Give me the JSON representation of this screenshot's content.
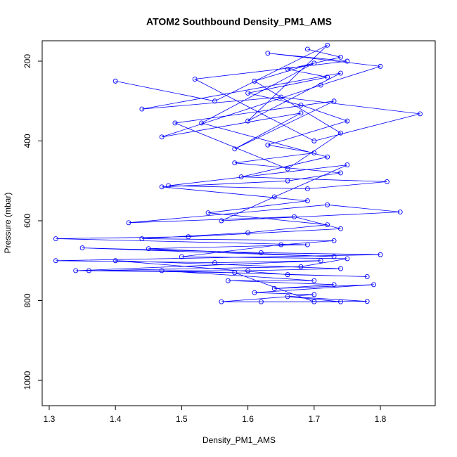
{
  "chart_data": {
    "type": "line",
    "title": "ATOM2 Southbound Density_PM1_AMS",
    "x_label": "Density_PM1_AMS",
    "y_label": "Pressure (mbar)",
    "color": "#0000ff",
    "markers": true,
    "y_reversed": true,
    "xlim": [
      1.2894,
      1.8828
    ],
    "ylim": [
      1063.4,
      148.9
    ],
    "xticks": [
      1.3,
      1.4,
      1.5,
      1.6,
      1.7,
      1.8
    ],
    "yticks": [
      200,
      400,
      600,
      800,
      1000
    ],
    "x": [
      1.4,
      1.55,
      1.72,
      1.6,
      1.74,
      1.44,
      1.65,
      1.86,
      1.7,
      1.52,
      1.75,
      1.63,
      1.8,
      1.71,
      1.47,
      1.68,
      1.58,
      1.73,
      1.49,
      1.66,
      1.74,
      1.61,
      1.7,
      1.53,
      1.72,
      1.59,
      1.81,
      1.69,
      1.48,
      1.75,
      1.64,
      1.56,
      1.83,
      1.72,
      1.42,
      1.67,
      1.74,
      1.51,
      1.31,
      1.69,
      1.45,
      1.73,
      1.35,
      1.62,
      1.8,
      1.31,
      1.55,
      1.71,
      1.34,
      1.6,
      1.74,
      1.4,
      1.66,
      1.78,
      1.47,
      1.7,
      1.57,
      1.73,
      1.64,
      1.79,
      1.61,
      1.7,
      1.56,
      1.74,
      1.66,
      1.78,
      1.62,
      1.7,
      1.58,
      1.36,
      1.68,
      1.75,
      1.5,
      1.65,
      1.73,
      1.44,
      1.6,
      1.72,
      1.54,
      1.69,
      1.47,
      1.66,
      1.74,
      1.58,
      1.7,
      1.63,
      1.75,
      1.68,
      1.6,
      1.72,
      1.66,
      1.74,
      1.69
    ],
    "y": [
      250,
      300,
      160,
      350,
      230,
      320,
      290,
      332,
      400,
      245,
      200,
      180,
      213,
      260,
      390,
      330,
      420,
      300,
      355,
      470,
      380,
      250,
      205,
      355,
      440,
      490,
      502,
      520,
      512,
      460,
      540,
      600,
      578,
      560,
      605,
      590,
      620,
      640,
      645,
      660,
      670,
      690,
      668,
      680,
      685,
      700,
      705,
      700,
      725,
      725,
      720,
      700,
      735,
      740,
      725,
      750,
      750,
      760,
      770,
      760,
      780,
      785,
      803,
      803,
      790,
      802,
      803,
      803,
      730,
      725,
      715,
      695,
      690,
      660,
      650,
      645,
      630,
      610,
      580,
      550,
      515,
      500,
      480,
      455,
      430,
      410,
      350,
      310,
      280,
      240,
      220,
      190,
      170
    ]
  }
}
